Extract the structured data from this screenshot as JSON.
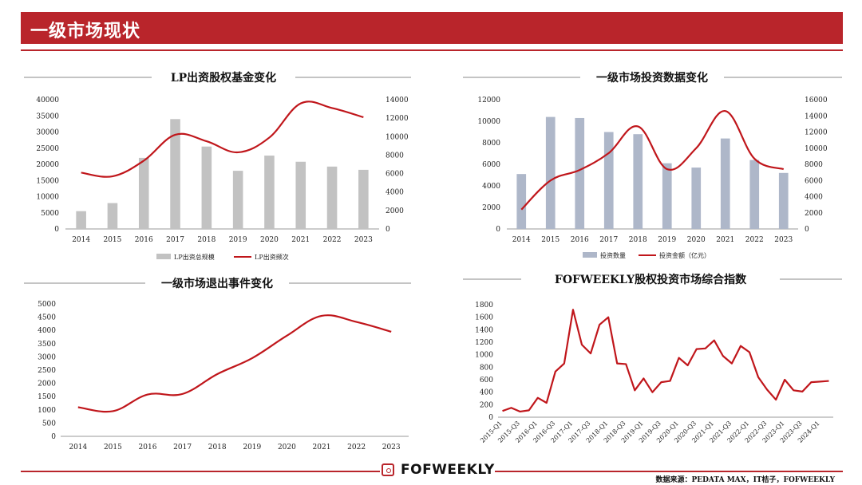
{
  "header": {
    "title": "一级市场现状"
  },
  "footer": {
    "brand": "FOFWEEKLY",
    "source": "数据来源：PEDATA MAX，IT桔子，FOFWEEKLY"
  },
  "colors": {
    "brand_red": "#b9252b",
    "bar_gray": "#c2c2c2",
    "bar_blue": "#aeb7c9",
    "line_red": "#c0161b"
  },
  "chart_data": [
    {
      "id": "lp",
      "type": "bar+line",
      "title": "LP出资股权基金变化",
      "categories": [
        "2014",
        "2015",
        "2016",
        "2017",
        "2018",
        "2019",
        "2020",
        "2021",
        "2022",
        "2023"
      ],
      "series": [
        {
          "name": "LP出资总规模",
          "type": "bar",
          "axis": "left",
          "values": [
            5500,
            8000,
            22000,
            34000,
            25500,
            18000,
            22700,
            20800,
            19300,
            18300
          ]
        },
        {
          "name": "LP出资频次",
          "type": "line",
          "axis": "right",
          "values": [
            6100,
            5700,
            7400,
            10200,
            9500,
            8300,
            9900,
            13600,
            13100,
            12100
          ]
        }
      ],
      "ylim_left": [
        0,
        40000
      ],
      "yticks_left": [
        0,
        5000,
        10000,
        15000,
        20000,
        25000,
        30000,
        35000,
        40000
      ],
      "ylim_right": [
        0,
        14000
      ],
      "yticks_right": [
        0,
        2000,
        4000,
        6000,
        8000,
        10000,
        12000,
        14000
      ]
    },
    {
      "id": "invest",
      "type": "bar+line",
      "title": "一级市场投资数据变化",
      "categories": [
        "2014",
        "2015",
        "2016",
        "2017",
        "2018",
        "2019",
        "2020",
        "2021",
        "2022",
        "2023"
      ],
      "series": [
        {
          "name": "投资数量",
          "type": "bar",
          "axis": "left",
          "values": [
            5100,
            10400,
            10300,
            9000,
            8800,
            6100,
            5700,
            8400,
            6400,
            5200
          ]
        },
        {
          "name": "投资金额（亿元）",
          "type": "line",
          "axis": "right",
          "values": [
            2400,
            6000,
            7300,
            9400,
            12700,
            7400,
            10000,
            14600,
            8700,
            7400
          ]
        }
      ],
      "ylim_left": [
        0,
        12000
      ],
      "yticks_left": [
        0,
        2000,
        4000,
        6000,
        8000,
        10000,
        12000
      ],
      "ylim_right": [
        0,
        16000
      ],
      "yticks_right": [
        0,
        2000,
        4000,
        6000,
        8000,
        10000,
        12000,
        14000,
        16000
      ]
    },
    {
      "id": "exit",
      "type": "line",
      "title": "一级市场退出事件变化",
      "categories": [
        "2014",
        "2015",
        "2016",
        "2017",
        "2018",
        "2019",
        "2020",
        "2021",
        "2022",
        "2023"
      ],
      "series": [
        {
          "name": "",
          "values": [
            1100,
            950,
            1580,
            1600,
            2350,
            2950,
            3800,
            4550,
            4320,
            3950
          ]
        }
      ],
      "ylim": [
        0,
        5000
      ],
      "yticks": [
        0,
        500,
        1000,
        1500,
        2000,
        2500,
        3000,
        3500,
        4000,
        4500,
        5000
      ]
    },
    {
      "id": "index",
      "type": "line",
      "title": "FOFWEEKLY股权投资市场综合指数",
      "categories": [
        "2015-Q1",
        "2015-Q2",
        "2015-Q3",
        "2015-Q4",
        "2016-Q1",
        "2016-Q2",
        "2016-Q3",
        "2016-Q4",
        "2017-Q1",
        "2017-Q2",
        "2017-Q3",
        "2017-Q4",
        "2018-Q1",
        "2018-Q2",
        "2018-Q3",
        "2018-Q4",
        "2019-Q1",
        "2019-Q2",
        "2019-Q3",
        "2019-Q4",
        "2020-Q1",
        "2020-Q2",
        "2020-Q3",
        "2020-Q4",
        "2021-Q1",
        "2021-Q2",
        "2021-Q3",
        "2021-Q4",
        "2022-Q1",
        "2022-Q2",
        "2022-Q3",
        "2022-Q4",
        "2023-Q1",
        "2023-Q2",
        "2023-Q3",
        "2023-Q4",
        "2024-Q1",
        "2024-Q2"
      ],
      "tick_labels": [
        "2015-Q1",
        "2015-Q3",
        "2016-Q1",
        "2016-Q3",
        "2017-Q1",
        "2017-Q3",
        "2018-Q1",
        "2018-Q3",
        "2019-Q1",
        "2019-Q3",
        "2020-Q1",
        "2020-Q3",
        "2021-Q1",
        "2021-Q3",
        "2022-Q1",
        "2022-Q3",
        "2023-Q1",
        "2023-Q3",
        "2024-Q1"
      ],
      "series": [
        {
          "name": "",
          "values": [
            100,
            150,
            90,
            110,
            310,
            230,
            730,
            860,
            1720,
            1160,
            1020,
            1480,
            1600,
            860,
            850,
            430,
            620,
            400,
            560,
            580,
            950,
            830,
            1090,
            1100,
            1230,
            980,
            860,
            1140,
            1040,
            640,
            440,
            280,
            600,
            430,
            410,
            560,
            570,
            580
          ]
        }
      ],
      "ylim": [
        0,
        1800
      ],
      "yticks": [
        0,
        200,
        400,
        600,
        800,
        1000,
        1200,
        1400,
        1600,
        1800
      ]
    }
  ]
}
